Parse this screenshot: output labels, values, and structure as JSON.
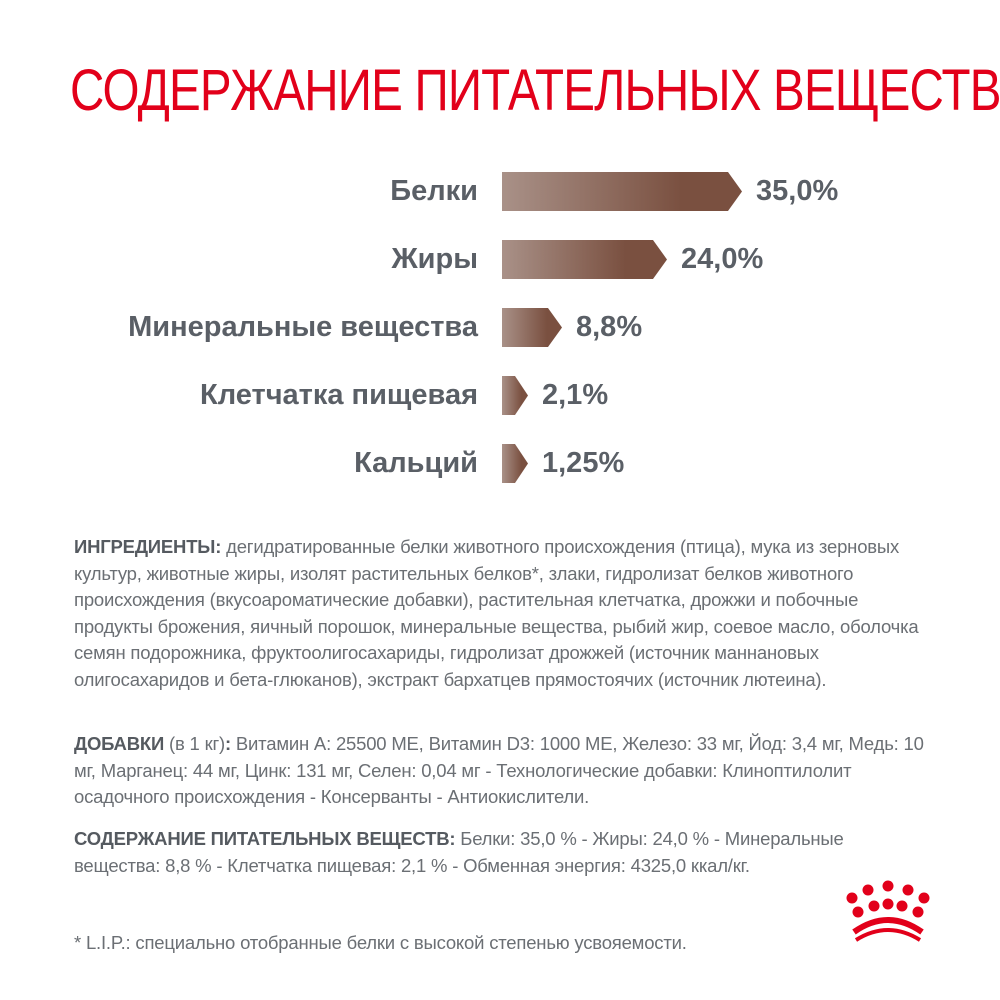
{
  "title": "СОДЕРЖАНИЕ ПИТАТЕЛЬНЫХ ВЕЩЕСТВ",
  "colors": {
    "title": "#e2001a",
    "bar_start": "#a99188",
    "bar_end": "#7a5040",
    "text": "#5a5f66",
    "logo": "#e2001a"
  },
  "chart_data": {
    "type": "bar",
    "orientation": "horizontal",
    "title": "СОДЕРЖАНИЕ ПИТАТЕЛЬНЫХ ВЕЩЕСТВ",
    "categories": [
      "Белки",
      "Жиры",
      "Минеральные вещества",
      "Клетчатка пищевая",
      "Кальций"
    ],
    "values": [
      35.0,
      24.0,
      8.8,
      2.1,
      1.25
    ],
    "value_labels": [
      "35,0%",
      "24,0%",
      "8,8%",
      "2,1%",
      "1,25%"
    ],
    "unit": "%",
    "xlabel": "",
    "ylabel": "",
    "grid": false,
    "legend": null
  },
  "rows": [
    {
      "label": "Белки",
      "value": "35,0%"
    },
    {
      "label": "Жиры",
      "value": "24,0%"
    },
    {
      "label": "Минеральные вещества",
      "value": "8,8%"
    },
    {
      "label": "Клетчатка пищевая",
      "value": "2,1%"
    },
    {
      "label": "Кальций",
      "value": "1,25%"
    }
  ],
  "ingredients": {
    "heading": "ИНГРЕДИЕНТЫ:",
    "text": " дегидратированные белки животного происхождения (птица), мука из зерновых культур, животные жиры, изолят растительных белков*, злаки, гидролизат белков животного происхождения (вкусоароматические добавки), растительная клетчатка, дрожжи и побочные продукты брожения, яичный порошок, минеральные вещества, рыбий жир, соевое масло, оболочка семян подорожника, фруктоолигосахариды, гидролизат дрожжей (источник маннановых олигосахаридов и бета-глюканов), экстракт бархатцев прямостоячих (источник лютеина)."
  },
  "additives": {
    "heading": "ДОБАВКИ",
    "sub": " (в 1 кг)",
    "colon": ":",
    "text": " Витамин А: 25500 МЕ, Витамин D3: 1000 МЕ, Железо: 33 мг, Йод: 3,4 мг, Медь: 10 мг, Марганец: 44 мг, Цинк: 131 мг, Селен: 0,04 мг - Технологические добавки: Клиноптилолит осадочного происхождения - Консерванты - Антиокислители."
  },
  "nutrients": {
    "heading": "СОДЕРЖАНИЕ ПИТАТЕЛЬНЫХ ВЕЩЕСТВ:",
    "text": " Белки: 35,0 % - Жиры: 24,0 % - Минеральные вещества: 8,8 % - Клетчатка пищевая: 2,1 % - Обменная энергия: 4325,0 ккал/кг."
  },
  "footnote": "* L.I.P.: специально отобранные белки с высокой степенью усвояемости.",
  "logo": {
    "icon": "royal-canin-crown-icon"
  }
}
